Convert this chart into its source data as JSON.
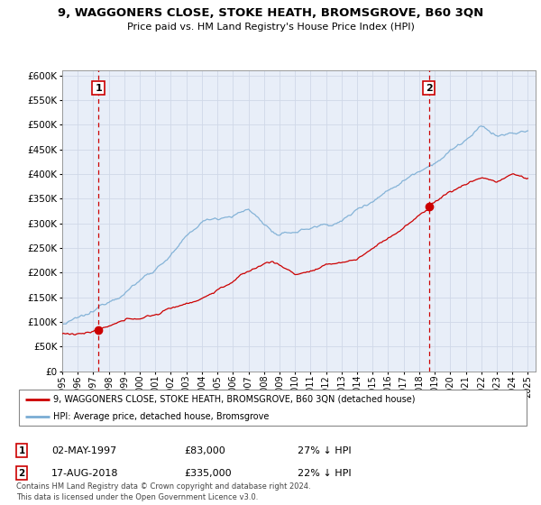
{
  "title": "9, WAGGONERS CLOSE, STOKE HEATH, BROMSGROVE, B60 3QN",
  "subtitle": "Price paid vs. HM Land Registry's House Price Index (HPI)",
  "legend_line1": "9, WAGGONERS CLOSE, STOKE HEATH, BROMSGROVE, B60 3QN (detached house)",
  "legend_line2": "HPI: Average price, detached house, Bromsgrove",
  "footer1": "Contains HM Land Registry data © Crown copyright and database right 2024.",
  "footer2": "This data is licensed under the Open Government Licence v3.0.",
  "sale1_date": "02-MAY-1997",
  "sale1_price": "£83,000",
  "sale1_hpi": "27% ↓ HPI",
  "sale2_date": "17-AUG-2018",
  "sale2_price": "£335,000",
  "sale2_hpi": "22% ↓ HPI",
  "sale1_year": 1997.33,
  "sale1_value": 83000,
  "sale2_year": 2018.62,
  "sale2_value": 335000,
  "red_color": "#cc0000",
  "blue_color": "#7aadd4",
  "grid_color": "#d0d8e8",
  "plot_bg": "#e8eef8",
  "ylim_min": 0,
  "ylim_max": 610000,
  "xlim_min": 1995.0,
  "xlim_max": 2025.5
}
